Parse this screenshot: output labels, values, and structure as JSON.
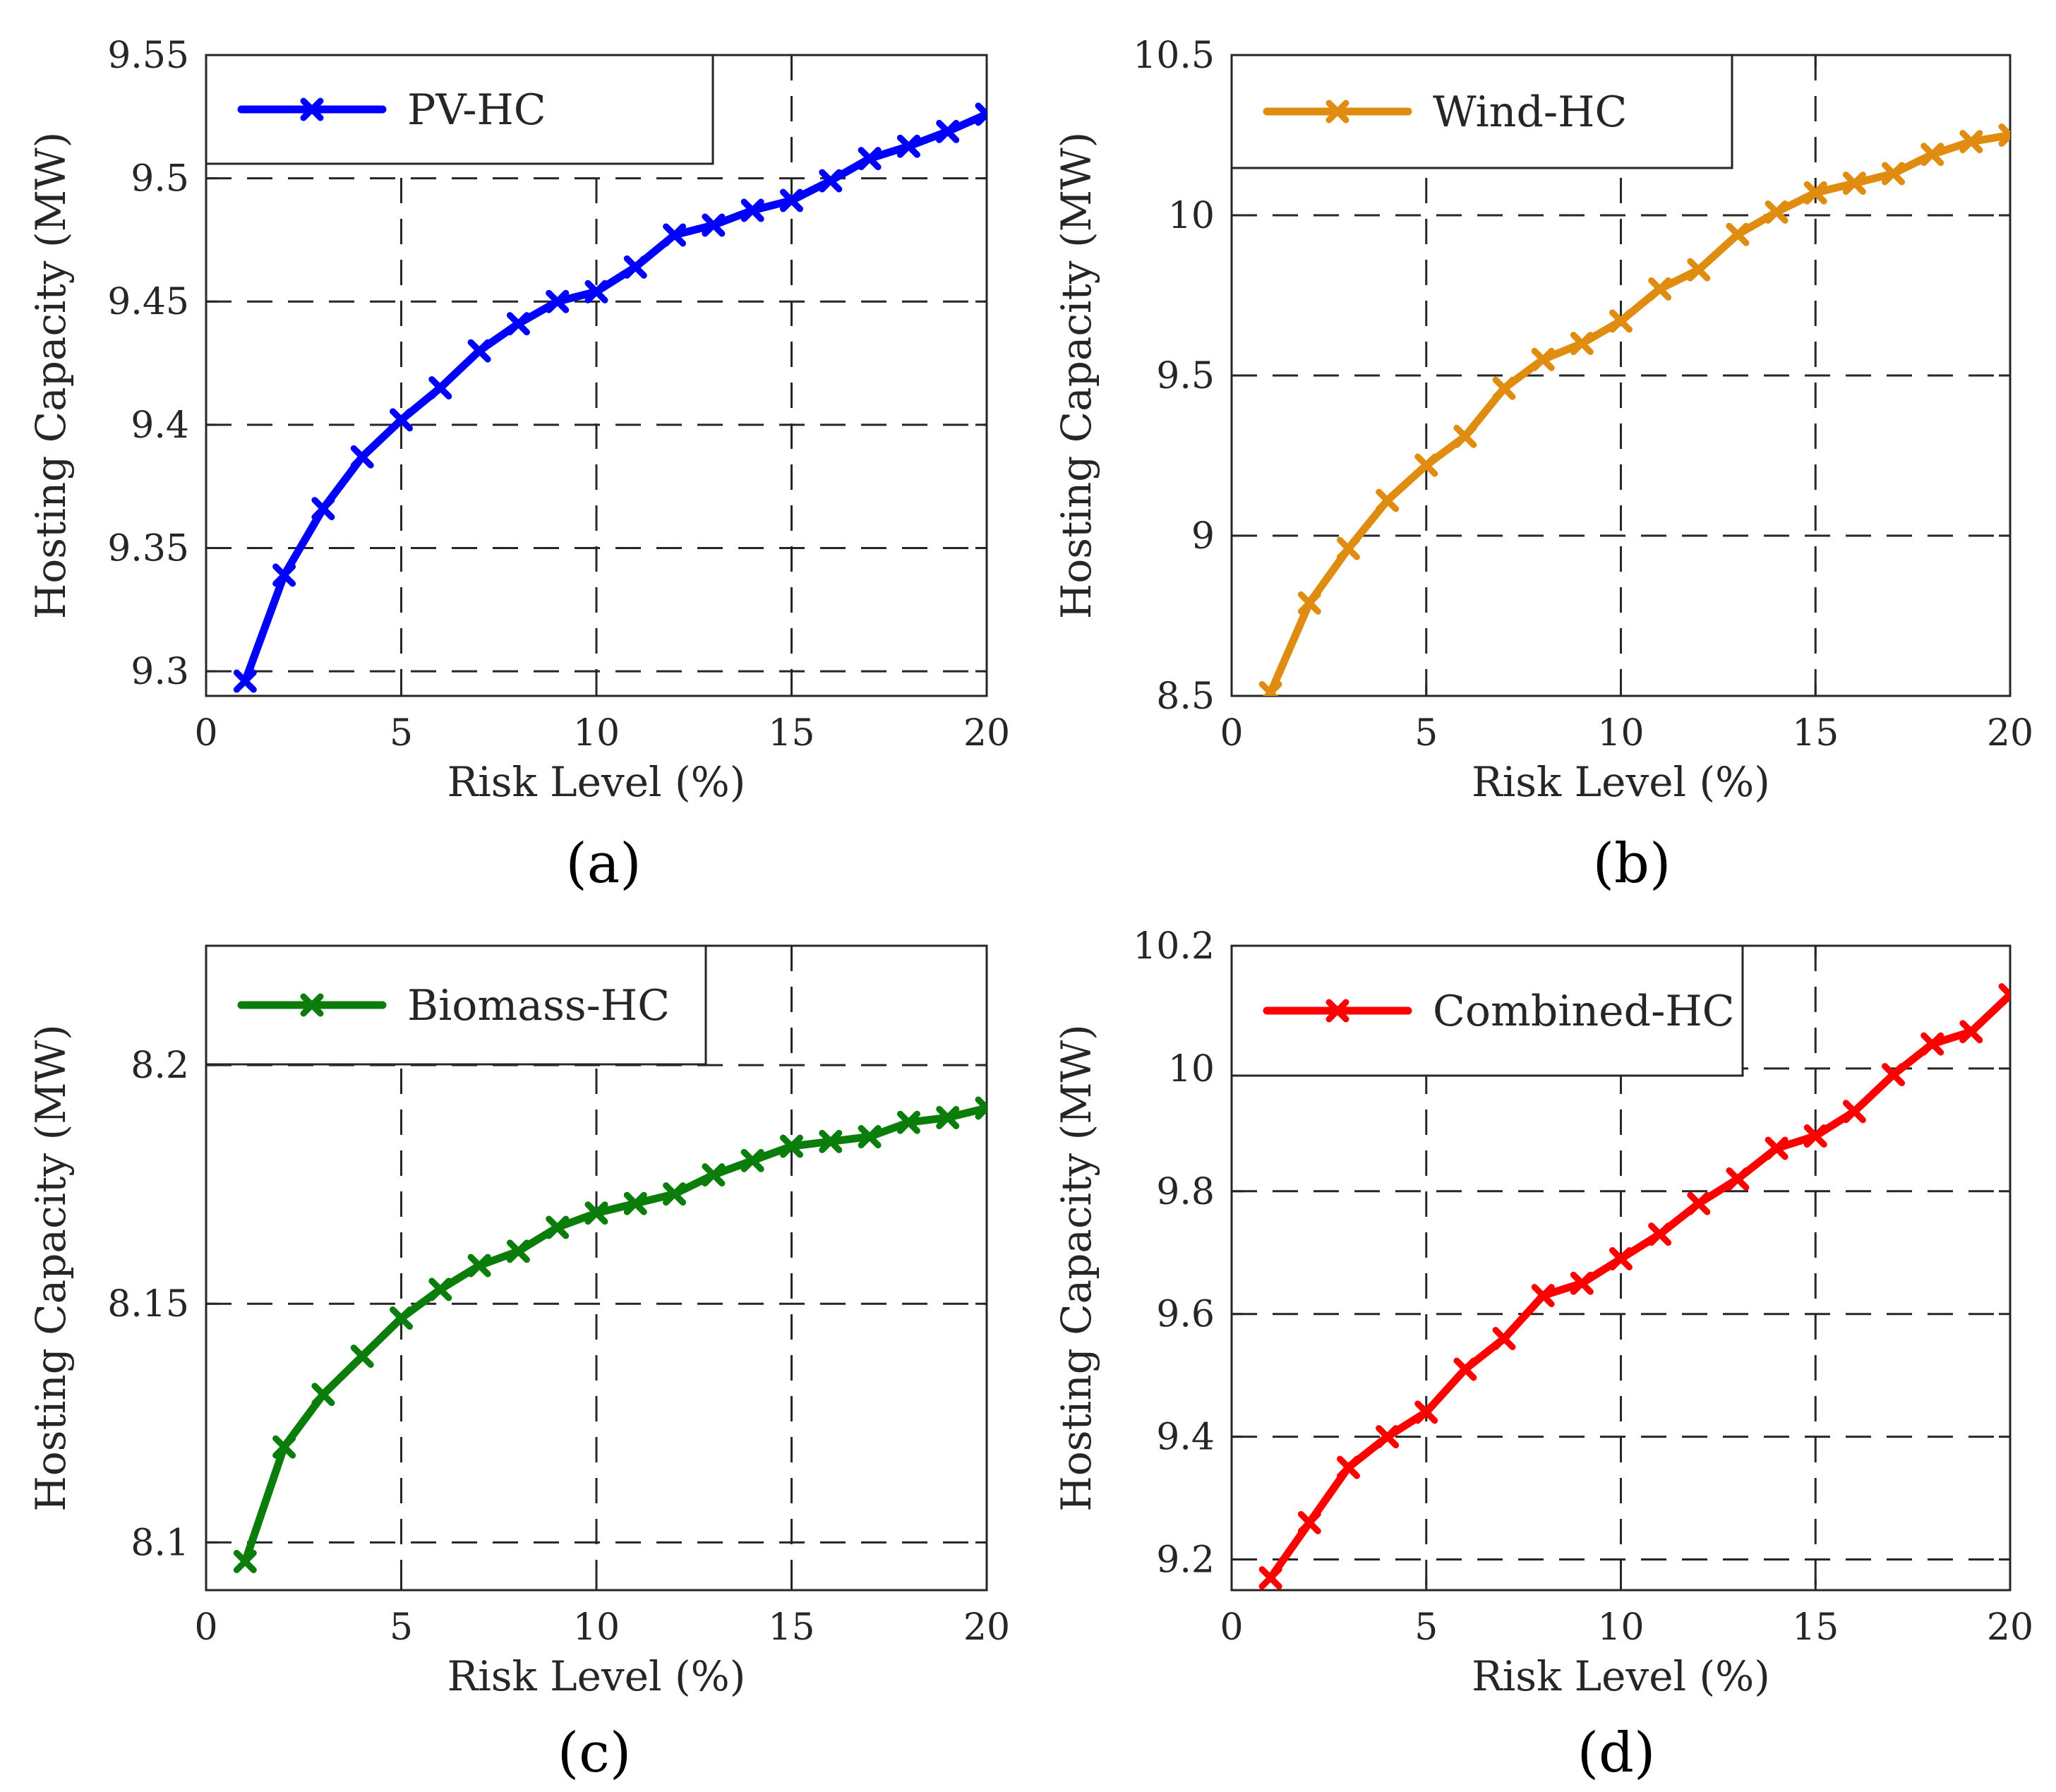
{
  "chart_data": [
    {
      "type": "line",
      "caption": "(a)",
      "xlabel": "Risk Level (%)",
      "ylabel": "Hosting Capacity (MW)",
      "xlim": [
        0,
        20
      ],
      "ylim": [
        9.29,
        9.55
      ],
      "xticks": [
        0,
        5,
        10,
        15,
        20
      ],
      "yticks": [
        9.3,
        9.35,
        9.4,
        9.45,
        9.5,
        9.55
      ],
      "grid": true,
      "legend_position": "top-left",
      "series": [
        {
          "name": "PV-HC",
          "color": "#0000ff",
          "x": [
            1,
            2,
            3,
            4,
            5,
            6,
            7,
            8,
            9,
            10,
            11,
            12,
            13,
            14,
            15,
            16,
            17,
            18,
            19,
            20
          ],
          "y": [
            9.296,
            9.339,
            9.366,
            9.387,
            9.402,
            9.415,
            9.43,
            9.441,
            9.45,
            9.454,
            9.464,
            9.477,
            9.481,
            9.487,
            9.491,
            9.499,
            9.508,
            9.513,
            9.519,
            9.526
          ]
        }
      ]
    },
    {
      "type": "line",
      "caption": "(b)",
      "xlabel": "Risk Level (%)",
      "ylabel": "Hosting Capacity (MW)",
      "xlim": [
        0,
        20
      ],
      "ylim": [
        8.5,
        10.5
      ],
      "xticks": [
        0,
        5,
        10,
        15,
        20
      ],
      "yticks": [
        8.5,
        9,
        9.5,
        10,
        10.5
      ],
      "grid": true,
      "legend_position": "top-left",
      "series": [
        {
          "name": "Wind-HC",
          "color": "#e08c10",
          "x": [
            1,
            2,
            3,
            4,
            5,
            6,
            7,
            8,
            9,
            10,
            11,
            12,
            13,
            14,
            15,
            16,
            17,
            18,
            19,
            20
          ],
          "y": [
            8.51,
            8.79,
            8.96,
            9.11,
            9.22,
            9.31,
            9.46,
            9.55,
            9.6,
            9.67,
            9.77,
            9.83,
            9.94,
            10.01,
            10.07,
            10.1,
            10.13,
            10.19,
            10.23,
            10.25
          ]
        }
      ]
    },
    {
      "type": "line",
      "caption": "(c)",
      "xlabel": "Risk Level (%)",
      "ylabel": "Hosting Capacity (MW)",
      "xlim": [
        0,
        20
      ],
      "ylim": [
        8.09,
        8.225
      ],
      "xticks": [
        0,
        5,
        10,
        15,
        20
      ],
      "yticks": [
        8.1,
        8.15,
        8.2
      ],
      "grid": true,
      "legend_position": "top-left",
      "series": [
        {
          "name": "Biomass-HC",
          "color": "#0a7d0a",
          "x": [
            1,
            2,
            3,
            4,
            5,
            6,
            7,
            8,
            9,
            10,
            11,
            12,
            13,
            14,
            15,
            16,
            17,
            18,
            19,
            20
          ],
          "y": [
            8.096,
            8.12,
            8.131,
            8.139,
            8.147,
            8.153,
            8.158,
            8.161,
            8.166,
            8.169,
            8.171,
            8.173,
            8.177,
            8.18,
            8.183,
            8.184,
            8.185,
            8.188,
            8.189,
            8.191
          ]
        }
      ]
    },
    {
      "type": "line",
      "caption": "(d)",
      "xlabel": "Risk Level (%)",
      "ylabel": "Hosting Capacity (MW)",
      "xlim": [
        0,
        20
      ],
      "ylim": [
        9.15,
        10.2
      ],
      "xticks": [
        0,
        5,
        10,
        15,
        20
      ],
      "yticks": [
        9.2,
        9.4,
        9.6,
        9.8,
        10,
        10.2
      ],
      "grid": true,
      "legend_position": "top-left",
      "series": [
        {
          "name": "Combined-HC",
          "color": "#ff0000",
          "x": [
            1,
            2,
            3,
            4,
            5,
            6,
            7,
            8,
            9,
            10,
            11,
            12,
            13,
            14,
            15,
            16,
            17,
            18,
            19,
            20
          ],
          "y": [
            9.17,
            9.26,
            9.35,
            9.4,
            9.44,
            9.51,
            9.56,
            9.63,
            9.65,
            9.69,
            9.73,
            9.78,
            9.82,
            9.87,
            9.89,
            9.93,
            9.99,
            10.04,
            10.06,
            10.12
          ]
        }
      ]
    }
  ]
}
